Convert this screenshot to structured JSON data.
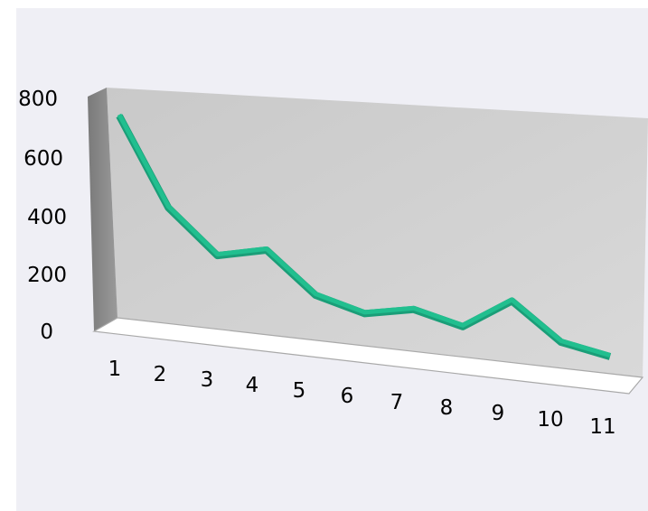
{
  "chart_data": {
    "type": "line",
    "style": "3d",
    "categories": [
      "1",
      "2",
      "3",
      "4",
      "5",
      "6",
      "7",
      "8",
      "9",
      "10",
      "11"
    ],
    "values": [
      770,
      440,
      275,
      310,
      155,
      100,
      130,
      80,
      190,
      50,
      10
    ],
    "ylim": [
      0,
      800
    ],
    "y_ticks": [
      "0",
      "200",
      "400",
      "600",
      "800"
    ],
    "grid": false,
    "legend": "none",
    "title": "",
    "xlabel": "",
    "ylabel": "",
    "colors": {
      "line": "#1a9e78",
      "line_highlight": "#21bf8f",
      "back_wall": "#cfcfcf",
      "side_wall": "#8c8c8c",
      "floor": "#ffffff",
      "background": "#efeff5"
    }
  }
}
